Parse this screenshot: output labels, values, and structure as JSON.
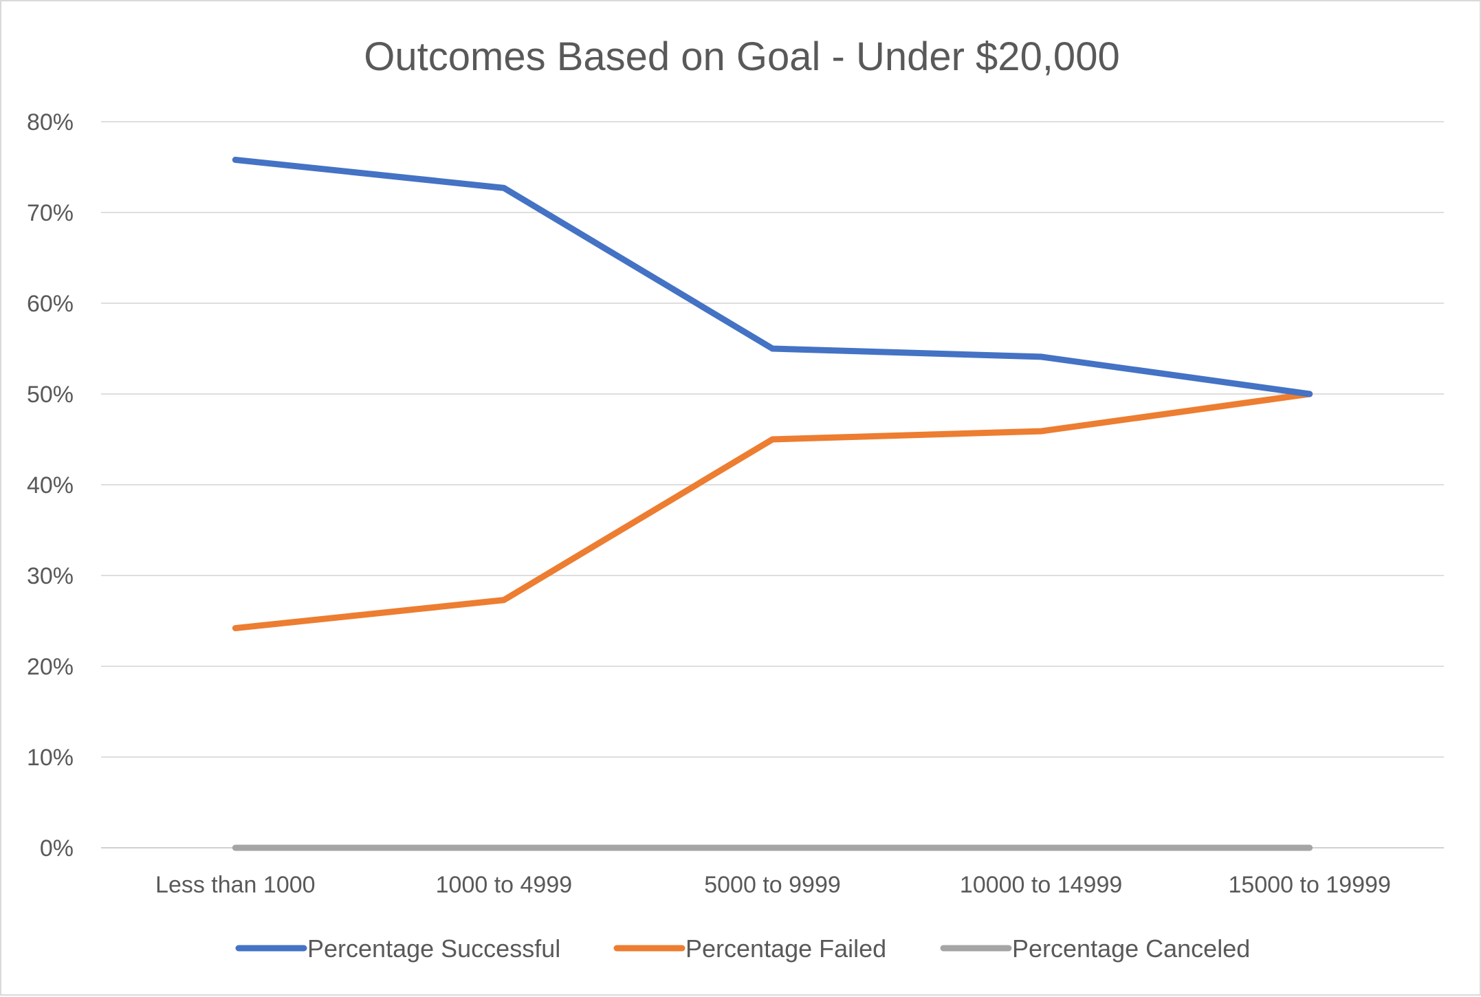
{
  "chart_data": {
    "type": "line",
    "title": "Outcomes Based on Goal - Under $20,000",
    "xlabel": "",
    "ylabel": "",
    "categories": [
      "Less than 1000",
      "1000 to 4999",
      "5000 to 9999",
      "10000 to 14999",
      "15000 to 19999"
    ],
    "ylim": [
      0,
      0.8
    ],
    "yticks": [
      0,
      0.1,
      0.2,
      0.3,
      0.4,
      0.5,
      0.6,
      0.7,
      0.8
    ],
    "ytick_labels": [
      "0%",
      "10%",
      "20%",
      "30%",
      "40%",
      "50%",
      "60%",
      "70%",
      "80%"
    ],
    "grid": true,
    "legend_position": "bottom",
    "series": [
      {
        "name": "Percentage Successful",
        "color": "#4472C4",
        "values": [
          0.758,
          0.727,
          0.55,
          0.541,
          0.5
        ]
      },
      {
        "name": "Percentage Failed",
        "color": "#ED7D31",
        "values": [
          0.242,
          0.273,
          0.45,
          0.459,
          0.5
        ]
      },
      {
        "name": "Percentage Canceled",
        "color": "#A5A5A5",
        "values": [
          0,
          0,
          0,
          0,
          0
        ]
      }
    ]
  }
}
